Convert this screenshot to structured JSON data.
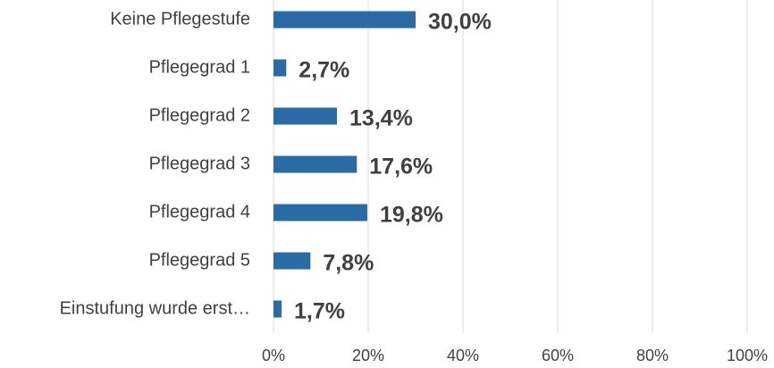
{
  "chart_data": {
    "type": "bar",
    "orientation": "horizontal",
    "categories": [
      "Keine Pflegestufe",
      "Pflegegrad 1",
      "Pflegegrad 2",
      "Pflegegrad 3",
      "Pflegegrad 4",
      "Pflegegrad 5",
      "Einstufung wurde erst…"
    ],
    "values": [
      30.0,
      2.7,
      13.4,
      17.6,
      19.8,
      7.8,
      1.7
    ],
    "value_labels": [
      "30,0%",
      "2,7%",
      "13,4%",
      "17,6%",
      "19,8%",
      "7,8%",
      "1,7%"
    ],
    "color": "#2a6ba6",
    "xlim": [
      0,
      100
    ],
    "xticks": [
      {
        "value": 0,
        "label": "0%"
      },
      {
        "value": 20,
        "label": "20%"
      },
      {
        "value": 40,
        "label": "40%"
      },
      {
        "value": 60,
        "label": "60%"
      },
      {
        "value": 80,
        "label": "80%"
      },
      {
        "value": 100,
        "label": "100%"
      }
    ],
    "grid": true
  }
}
